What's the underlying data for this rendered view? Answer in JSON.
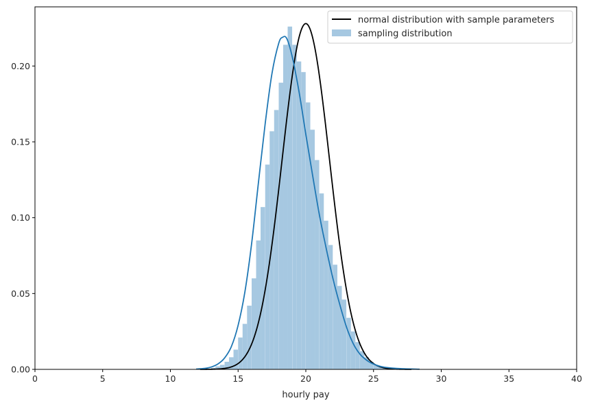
{
  "chart_data": {
    "type": "histogram",
    "xlabel": "hourly pay",
    "ylabel": "",
    "xlim": [
      0,
      40
    ],
    "ylim": [
      0,
      0.239
    ],
    "xticks": [
      0,
      5,
      10,
      15,
      20,
      25,
      30,
      35,
      40
    ],
    "xtick_labels": [
      "0",
      "5",
      "10",
      "15",
      "20",
      "25",
      "30",
      "35",
      "40"
    ],
    "yticks": [
      0.0,
      0.05,
      0.1,
      0.15,
      0.2
    ],
    "ytick_labels": [
      "0.00",
      "0.05",
      "0.10",
      "0.15",
      "0.20"
    ],
    "grid": false,
    "legend_position": "top-right",
    "colors": {
      "hist_fill": "#a6c8e1",
      "kde_line": "#1f77b4",
      "normal_line": "#000000",
      "axis": "#000000"
    },
    "histogram": {
      "name": "sampling distribution",
      "bin_width": 0.33,
      "bins": [
        {
          "x": 13.0,
          "d": 0.001
        },
        {
          "x": 13.33,
          "d": 0.002
        },
        {
          "x": 13.66,
          "d": 0.003
        },
        {
          "x": 14.0,
          "d": 0.005
        },
        {
          "x": 14.33,
          "d": 0.008
        },
        {
          "x": 14.66,
          "d": 0.013
        },
        {
          "x": 15.0,
          "d": 0.021
        },
        {
          "x": 15.33,
          "d": 0.03
        },
        {
          "x": 15.66,
          "d": 0.042
        },
        {
          "x": 16.0,
          "d": 0.06
        },
        {
          "x": 16.33,
          "d": 0.085
        },
        {
          "x": 16.66,
          "d": 0.107
        },
        {
          "x": 17.0,
          "d": 0.135
        },
        {
          "x": 17.33,
          "d": 0.157
        },
        {
          "x": 17.66,
          "d": 0.171
        },
        {
          "x": 18.0,
          "d": 0.189
        },
        {
          "x": 18.33,
          "d": 0.214
        },
        {
          "x": 18.66,
          "d": 0.226
        },
        {
          "x": 19.0,
          "d": 0.214
        },
        {
          "x": 19.33,
          "d": 0.203
        },
        {
          "x": 19.66,
          "d": 0.196
        },
        {
          "x": 20.0,
          "d": 0.176
        },
        {
          "x": 20.33,
          "d": 0.158
        },
        {
          "x": 20.66,
          "d": 0.138
        },
        {
          "x": 21.0,
          "d": 0.116
        },
        {
          "x": 21.33,
          "d": 0.098
        },
        {
          "x": 21.66,
          "d": 0.082
        },
        {
          "x": 22.0,
          "d": 0.069
        },
        {
          "x": 22.33,
          "d": 0.055
        },
        {
          "x": 22.66,
          "d": 0.046
        },
        {
          "x": 23.0,
          "d": 0.034
        },
        {
          "x": 23.33,
          "d": 0.025
        },
        {
          "x": 23.66,
          "d": 0.018
        },
        {
          "x": 24.0,
          "d": 0.012
        },
        {
          "x": 24.33,
          "d": 0.008
        },
        {
          "x": 24.66,
          "d": 0.005
        },
        {
          "x": 25.0,
          "d": 0.003
        },
        {
          "x": 25.33,
          "d": 0.002
        },
        {
          "x": 25.66,
          "d": 0.001
        }
      ]
    },
    "kde": {
      "x": [
        11.9,
        12.5,
        13.0,
        13.5,
        14.0,
        14.5,
        15.0,
        15.5,
        16.0,
        16.5,
        17.0,
        17.5,
        18.0,
        18.3,
        18.6,
        19.0,
        19.5,
        20.0,
        20.5,
        21.0,
        21.5,
        22.0,
        22.5,
        23.0,
        23.5,
        24.0,
        24.5,
        25.0,
        25.5,
        26.0,
        27.0,
        28.4
      ],
      "y": [
        0.0002,
        0.0006,
        0.0015,
        0.0035,
        0.0075,
        0.015,
        0.029,
        0.051,
        0.083,
        0.123,
        0.162,
        0.195,
        0.215,
        0.219,
        0.218,
        0.206,
        0.183,
        0.155,
        0.128,
        0.102,
        0.08,
        0.06,
        0.043,
        0.028,
        0.017,
        0.01,
        0.006,
        0.0035,
        0.002,
        0.0012,
        0.0005,
        0.0001
      ]
    },
    "normal": {
      "name": "normal distribution with sample parameters",
      "mean": 20.0,
      "sd": 1.75,
      "x_range": [
        12.2,
        27.8
      ]
    }
  }
}
